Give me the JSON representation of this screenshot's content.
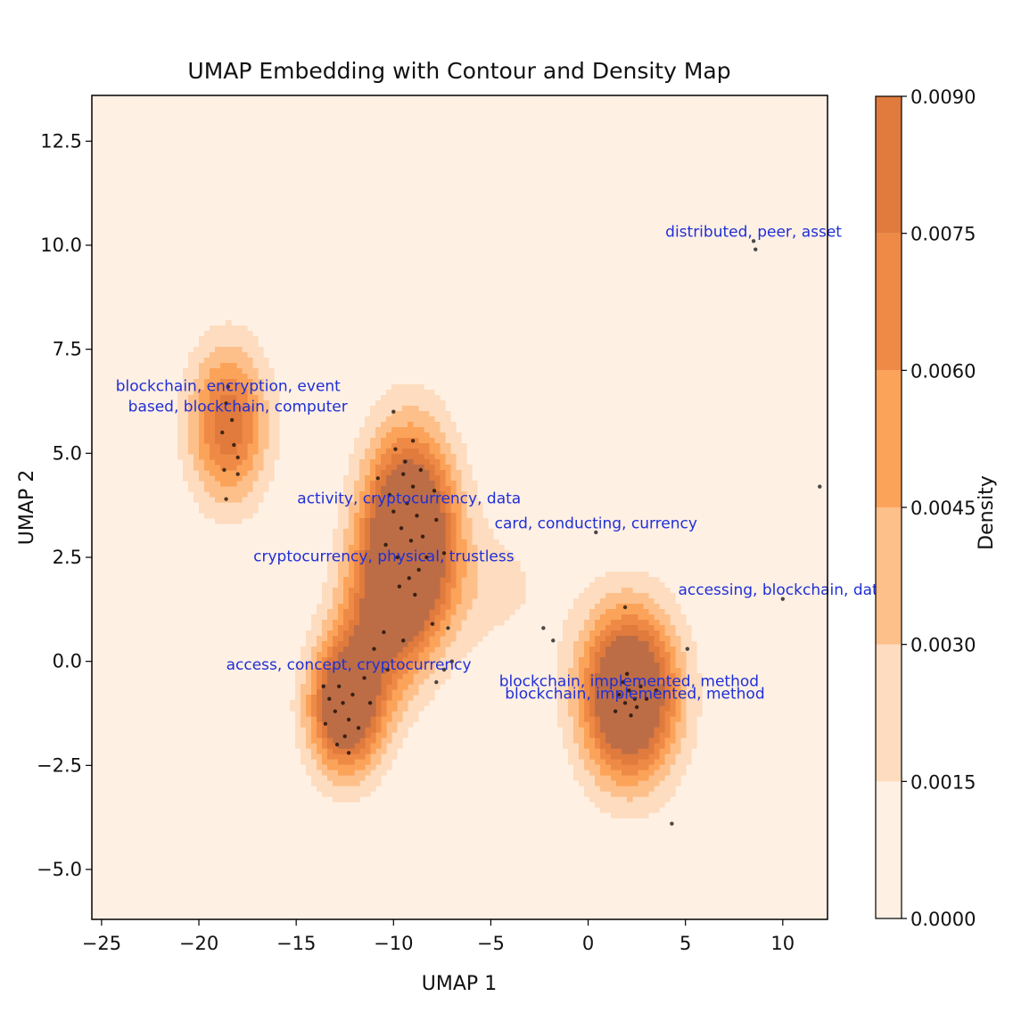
{
  "chart_data": {
    "type": "scatter",
    "title": "UMAP Embedding with Contour and Density Map",
    "xlabel": "UMAP 1",
    "ylabel": "UMAP 2",
    "xlim": [
      -25.5,
      12.3
    ],
    "ylim": [
      -6.2,
      13.6
    ],
    "x_ticks": [
      -25,
      -20,
      -15,
      -10,
      -5,
      0,
      5,
      10
    ],
    "x_tick_labels": [
      "−25",
      "−20",
      "−15",
      "−10",
      "−5",
      "0",
      "5",
      "10"
    ],
    "y_ticks": [
      -5.0,
      -2.5,
      0.0,
      2.5,
      5.0,
      7.5,
      10.0,
      12.5
    ],
    "y_tick_labels": [
      "−5.0",
      "−2.5",
      "0.0",
      "2.5",
      "5.0",
      "7.5",
      "10.0",
      "12.5"
    ],
    "colorbar": {
      "label": "Density",
      "levels": [
        0.0,
        0.0015,
        0.003,
        0.0045,
        0.006,
        0.0075,
        0.009
      ],
      "tick_labels": [
        "0.0000",
        "0.0015",
        "0.0030",
        "0.0045",
        "0.0060",
        "0.0075",
        "0.0090"
      ],
      "colors": [
        "#fff0e4",
        "#fddcbf",
        "#fdc08b",
        "#fca35a",
        "#ee8a46",
        "#e07b3d",
        "#bd6d45"
      ]
    },
    "density_clusters": [
      {
        "center": [
          -9.2,
          3.0
        ],
        "sx": 1.6,
        "sy": 1.7,
        "weight": 1.0
      },
      {
        "center": [
          -12.5,
          -1.1
        ],
        "sx": 1.3,
        "sy": 1.1,
        "weight": 0.8
      },
      {
        "center": [
          -10.8,
          0.9
        ],
        "sx": 1.5,
        "sy": 1.4,
        "weight": 0.4
      },
      {
        "center": [
          2.1,
          -0.8
        ],
        "sx": 1.7,
        "sy": 1.4,
        "weight": 0.95
      },
      {
        "center": [
          -18.5,
          5.7
        ],
        "sx": 1.4,
        "sy": 1.3,
        "weight": 0.55
      },
      {
        "center": [
          -5.0,
          1.8
        ],
        "sx": 2.5,
        "sy": 1.2,
        "weight": 0.12
      }
    ],
    "points": [
      [
        -9.5,
        4.5
      ],
      [
        -9.0,
        4.2
      ],
      [
        -9.3,
        3.8
      ],
      [
        -8.8,
        3.5
      ],
      [
        -9.6,
        3.2
      ],
      [
        -9.1,
        2.9
      ],
      [
        -8.5,
        3.0
      ],
      [
        -10.0,
        3.6
      ],
      [
        -9.8,
        2.5
      ],
      [
        -9.2,
        2.0
      ],
      [
        -8.7,
        2.2
      ],
      [
        -10.2,
        4.0
      ],
      [
        -9.4,
        4.8
      ],
      [
        -8.6,
        4.6
      ],
      [
        -7.8,
        3.4
      ],
      [
        -7.4,
        2.6
      ],
      [
        -10.4,
        2.8
      ],
      [
        -9.7,
        1.8
      ],
      [
        -8.9,
        1.6
      ],
      [
        -9.9,
        5.1
      ],
      [
        -9.0,
        5.3
      ],
      [
        -10.8,
        4.4
      ],
      [
        -7.9,
        4.1
      ],
      [
        -8.3,
        2.5
      ],
      [
        -10.0,
        6.0
      ],
      [
        -7.2,
        0.8
      ],
      [
        -8.0,
        0.9
      ],
      [
        -10.5,
        0.7
      ],
      [
        -11.0,
        0.3
      ],
      [
        -9.5,
        0.5
      ],
      [
        -10.3,
        -0.2
      ],
      [
        -12.6,
        -1.0
      ],
      [
        -12.3,
        -1.4
      ],
      [
        -12.8,
        -0.6
      ],
      [
        -13.0,
        -1.2
      ],
      [
        -12.1,
        -0.8
      ],
      [
        -11.8,
        -1.6
      ],
      [
        -13.3,
        -0.9
      ],
      [
        -12.5,
        -1.8
      ],
      [
        -12.9,
        -2.0
      ],
      [
        -12.3,
        -2.2
      ],
      [
        -13.5,
        -1.5
      ],
      [
        -11.5,
        -0.4
      ],
      [
        -11.2,
        -1.0
      ],
      [
        -13.6,
        -0.6
      ],
      [
        -7.4,
        -0.2
      ],
      [
        -7.0,
        0.0
      ],
      [
        -7.8,
        -0.5
      ],
      [
        2.1,
        -0.7
      ],
      [
        1.9,
        -1.0
      ],
      [
        2.4,
        -0.9
      ],
      [
        1.6,
        -0.8
      ],
      [
        2.7,
        -0.6
      ],
      [
        2.2,
        -1.3
      ],
      [
        1.8,
        -0.5
      ],
      [
        2.5,
        -1.1
      ],
      [
        1.4,
        -1.2
      ],
      [
        3.0,
        -0.9
      ],
      [
        2.0,
        -0.3
      ],
      [
        1.9,
        1.3
      ],
      [
        5.1,
        0.3
      ],
      [
        3.5,
        -0.7
      ],
      [
        -18.6,
        6.2
      ],
      [
        -18.3,
        5.8
      ],
      [
        -18.8,
        5.5
      ],
      [
        -18.2,
        5.2
      ],
      [
        -18.5,
        6.6
      ],
      [
        -18.0,
        4.9
      ],
      [
        -18.7,
        4.6
      ],
      [
        -18.0,
        4.5
      ],
      [
        -18.6,
        3.9
      ],
      [
        -2.3,
        0.8
      ],
      [
        -1.8,
        0.5
      ],
      [
        0.4,
        3.1
      ],
      [
        8.5,
        10.1
      ],
      [
        8.6,
        9.9
      ],
      [
        10.0,
        1.5
      ],
      [
        11.9,
        4.2
      ],
      [
        4.3,
        -3.9
      ]
    ],
    "annotations": [
      {
        "text": "distributed, peer, asset",
        "x": 8.5,
        "y": 10.2
      },
      {
        "text": "blockchain, encryption, event",
        "x": -18.5,
        "y": 6.5
      },
      {
        "text": "based, blockchain, computer",
        "x": -18.0,
        "y": 6.0
      },
      {
        "text": "activity, cryptocurrency, data",
        "x": -9.2,
        "y": 3.8
      },
      {
        "text": "card, conducting, currency",
        "x": 0.4,
        "y": 3.2
      },
      {
        "text": "cryptocurrency, physical, trustless",
        "x": -10.5,
        "y": 2.4
      },
      {
        "text": "accessing, blockchain, data",
        "x": 10.0,
        "y": 1.6
      },
      {
        "text": "access, concept, cryptocurrency",
        "x": -12.3,
        "y": -0.2
      },
      {
        "text": "blockchain, implemented, method",
        "x": 2.1,
        "y": -0.6
      },
      {
        "text": "blockchain, implemented, method",
        "x": 2.4,
        "y": -0.9
      }
    ]
  }
}
